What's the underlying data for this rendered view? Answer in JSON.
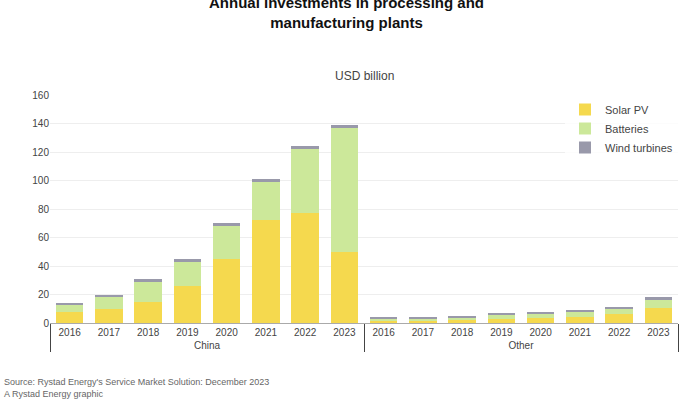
{
  "chart_data": {
    "type": "bar",
    "stacked": true,
    "title": "Annual investments in processing and\nmanufacturing plants",
    "subtitle": "USD billion",
    "annotations": [
      "Source: Rystad Energy's Service Market Solution: December 2023\nA Rystad Energy graphic"
    ],
    "categories": [
      [
        "China",
        "2016"
      ],
      [
        "China",
        "2017"
      ],
      [
        "China",
        "2018"
      ],
      [
        "China",
        "2019"
      ],
      [
        "China",
        "2020"
      ],
      [
        "China",
        "2021"
      ],
      [
        "China",
        "2022"
      ],
      [
        "China",
        "2023"
      ],
      [
        "Other",
        "2016"
      ],
      [
        "Other",
        "2017"
      ],
      [
        "Other",
        "2018"
      ],
      [
        "Other",
        "2019"
      ],
      [
        "Other",
        "2020"
      ],
      [
        "Other",
        "2021"
      ],
      [
        "Other",
        "2022"
      ],
      [
        "Other",
        "2023"
      ]
    ],
    "series": [
      {
        "name": "Solar PV",
        "color": "#f5d94e",
        "values": [
          8,
          10,
          15,
          26,
          45,
          72,
          77,
          50,
          1.5,
          1.5,
          2.0,
          3.0,
          3.5,
          4.5,
          6.5,
          10.5
        ]
      },
      {
        "name": "Batteries",
        "color": "#cce89a",
        "values": [
          5,
          8,
          14,
          17,
          23,
          27,
          45,
          87,
          1.5,
          1.5,
          1.5,
          2.5,
          3.0,
          3.0,
          3.0,
          5.5
        ]
      },
      {
        "name": "Wind turbines",
        "color": "#9999aa",
        "values": [
          1,
          2,
          2,
          2,
          2,
          2,
          2,
          2,
          1.0,
          1.5,
          1.5,
          1.5,
          1.5,
          1.5,
          1.5,
          2.0
        ]
      }
    ],
    "ylim": [
      0,
      160
    ],
    "yticks": [
      0,
      20,
      40,
      60,
      80,
      100,
      120,
      140,
      160
    ],
    "grid": true,
    "legend": "upper right"
  }
}
